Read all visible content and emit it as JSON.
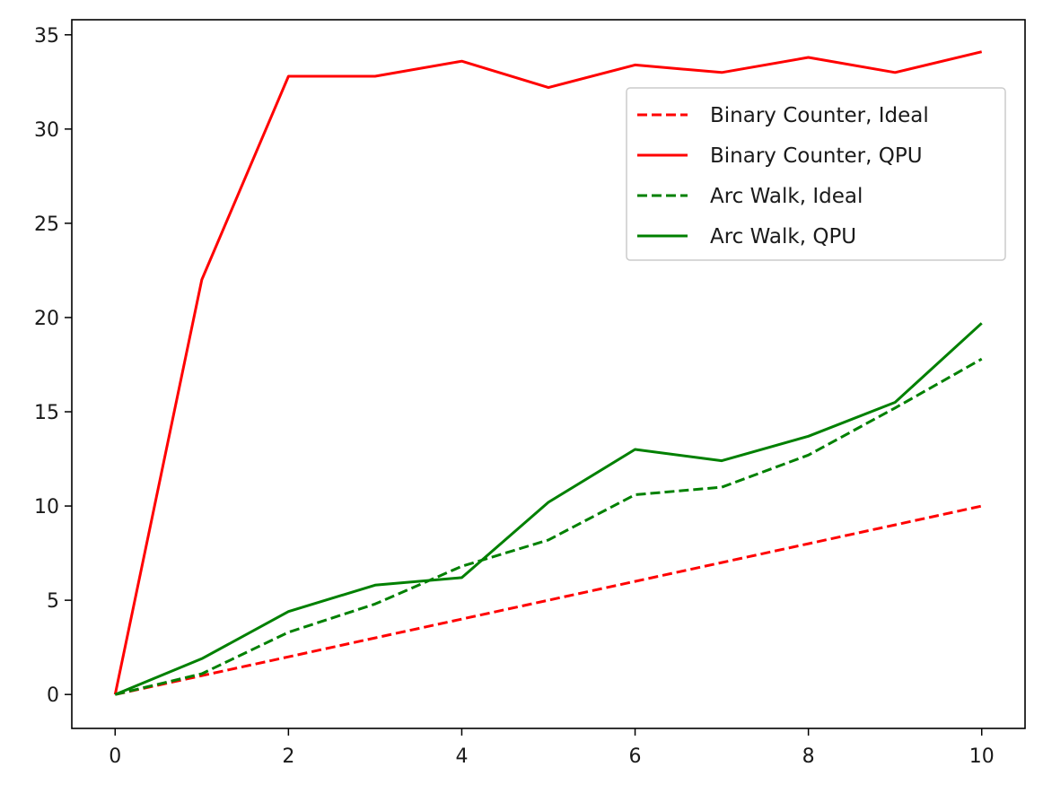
{
  "chart_data": {
    "type": "line",
    "title": "",
    "xlabel": "",
    "ylabel": "",
    "xlim": [
      -0.5,
      10.5
    ],
    "ylim": [
      -1.8,
      35.8
    ],
    "x_ticks": [
      0,
      2,
      4,
      6,
      8,
      10
    ],
    "y_ticks": [
      0,
      5,
      10,
      15,
      20,
      25,
      30,
      35
    ],
    "grid": false,
    "legend_position": "upper-right",
    "x": [
      0,
      1,
      2,
      3,
      4,
      5,
      6,
      7,
      8,
      9,
      10
    ],
    "series": [
      {
        "name": "Binary Counter, Ideal",
        "color": "#ff0000",
        "dashed": true,
        "values": [
          0,
          1,
          2,
          3,
          4,
          5,
          6,
          7,
          8,
          9,
          10
        ]
      },
      {
        "name": "Binary Counter, QPU",
        "color": "#ff0000",
        "dashed": false,
        "values": [
          0,
          22,
          32.8,
          32.8,
          33.6,
          32.2,
          33.4,
          33.0,
          33.8,
          33.0,
          34.1
        ]
      },
      {
        "name": "Arc Walk, Ideal",
        "color": "#008000",
        "dashed": true,
        "values": [
          0,
          1.1,
          3.3,
          4.8,
          6.8,
          8.2,
          10.6,
          11.0,
          12.7,
          15.2,
          17.8
        ]
      },
      {
        "name": "Arc Walk, QPU",
        "color": "#008000",
        "dashed": false,
        "values": [
          0,
          1.9,
          4.4,
          5.8,
          6.2,
          10.2,
          13.0,
          12.4,
          13.7,
          15.5,
          19.7
        ]
      }
    ]
  }
}
